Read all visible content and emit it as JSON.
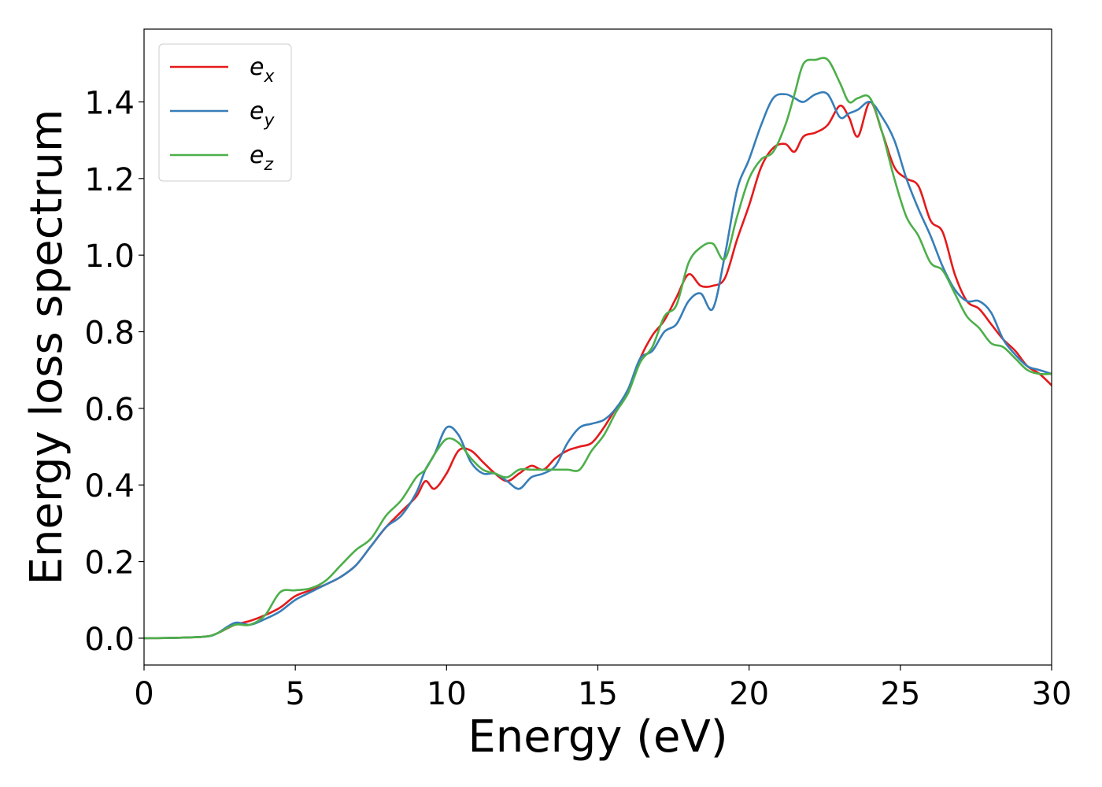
{
  "chart_data": {
    "type": "line",
    "title": "",
    "xlabel": "Energy (eV)",
    "ylabel": "Energy loss spectrum",
    "xlim": [
      0,
      30
    ],
    "ylim": [
      -0.07,
      1.59
    ],
    "xticks": [
      0,
      5,
      10,
      15,
      20,
      25,
      30
    ],
    "xtick_labels": [
      "0",
      "5",
      "10",
      "15",
      "20",
      "25",
      "30"
    ],
    "yticks": [
      0.0,
      0.2,
      0.4,
      0.6,
      0.8,
      1.0,
      1.2,
      1.4
    ],
    "ytick_labels": [
      "0.0",
      "0.2",
      "0.4",
      "0.6",
      "0.8",
      "1.0",
      "1.2",
      "1.4"
    ],
    "grid": false,
    "legend_position": "top-left",
    "series": [
      {
        "name": "e_x",
        "legend_base": "e",
        "legend_sub": "x",
        "color": "#e41a1c",
        "x": [
          0,
          1,
          2,
          2.4,
          3,
          3.5,
          4,
          4.5,
          5,
          5.5,
          6,
          6.5,
          7,
          7.5,
          8,
          8.5,
          9,
          9.3,
          9.6,
          10,
          10.4,
          10.8,
          11.2,
          11.6,
          12,
          12.4,
          12.8,
          13.2,
          13.6,
          14,
          14.4,
          14.8,
          15.2,
          15.6,
          16,
          16.4,
          16.8,
          17.2,
          17.6,
          18,
          18.4,
          18.8,
          19.2,
          19.6,
          20,
          20.4,
          20.8,
          21.2,
          21.5,
          21.8,
          22.2,
          22.6,
          23,
          23.3,
          23.6,
          24,
          24.4,
          24.8,
          25.2,
          25.6,
          26,
          26.4,
          26.8,
          27.2,
          27.6,
          28,
          28.4,
          28.8,
          29.2,
          29.6,
          30
        ],
        "y": [
          0.0,
          0.001,
          0.004,
          0.012,
          0.035,
          0.045,
          0.06,
          0.08,
          0.11,
          0.125,
          0.14,
          0.16,
          0.19,
          0.24,
          0.29,
          0.33,
          0.37,
          0.41,
          0.39,
          0.43,
          0.49,
          0.49,
          0.46,
          0.43,
          0.41,
          0.43,
          0.45,
          0.44,
          0.47,
          0.49,
          0.5,
          0.51,
          0.55,
          0.6,
          0.64,
          0.73,
          0.79,
          0.83,
          0.89,
          0.95,
          0.92,
          0.92,
          0.94,
          1.04,
          1.13,
          1.23,
          1.28,
          1.29,
          1.27,
          1.31,
          1.32,
          1.34,
          1.39,
          1.36,
          1.31,
          1.4,
          1.32,
          1.23,
          1.2,
          1.18,
          1.09,
          1.06,
          0.95,
          0.88,
          0.86,
          0.82,
          0.78,
          0.75,
          0.71,
          0.69,
          0.66
        ]
      },
      {
        "name": "e_y",
        "legend_base": "e",
        "legend_sub": "y",
        "color": "#377eb8",
        "x": [
          0,
          1,
          2,
          2.4,
          3,
          3.5,
          4,
          4.5,
          5,
          5.5,
          6,
          6.5,
          7,
          7.5,
          8,
          8.5,
          9,
          9.3,
          9.6,
          10,
          10.4,
          10.8,
          11.2,
          11.6,
          12,
          12.4,
          12.8,
          13.2,
          13.6,
          14,
          14.4,
          14.8,
          15.2,
          15.6,
          16,
          16.4,
          16.8,
          17.2,
          17.6,
          18,
          18.4,
          18.8,
          19.2,
          19.6,
          20,
          20.4,
          20.8,
          21.2,
          21.5,
          21.8,
          22.2,
          22.6,
          23,
          23.3,
          23.6,
          24,
          24.4,
          24.8,
          25.2,
          25.6,
          26,
          26.4,
          26.8,
          27.2,
          27.6,
          28,
          28.4,
          28.8,
          29.2,
          29.6,
          30
        ],
        "y": [
          0.0,
          0.001,
          0.004,
          0.012,
          0.04,
          0.035,
          0.05,
          0.07,
          0.1,
          0.12,
          0.14,
          0.16,
          0.19,
          0.24,
          0.29,
          0.32,
          0.38,
          0.44,
          0.48,
          0.55,
          0.53,
          0.46,
          0.43,
          0.43,
          0.41,
          0.39,
          0.42,
          0.43,
          0.45,
          0.51,
          0.55,
          0.56,
          0.57,
          0.6,
          0.65,
          0.73,
          0.75,
          0.8,
          0.82,
          0.88,
          0.9,
          0.86,
          1.0,
          1.17,
          1.25,
          1.34,
          1.41,
          1.42,
          1.41,
          1.4,
          1.42,
          1.42,
          1.36,
          1.37,
          1.38,
          1.4,
          1.36,
          1.3,
          1.2,
          1.12,
          1.05,
          0.97,
          0.91,
          0.88,
          0.88,
          0.85,
          0.78,
          0.74,
          0.71,
          0.7,
          0.69
        ]
      },
      {
        "name": "e_z",
        "legend_base": "e",
        "legend_sub": "z",
        "color": "#4daf4a",
        "x": [
          0,
          1,
          2,
          2.4,
          3,
          3.5,
          4,
          4.5,
          5,
          5.5,
          6,
          6.5,
          7,
          7.5,
          8,
          8.5,
          9,
          9.3,
          9.6,
          10,
          10.4,
          10.8,
          11.2,
          11.6,
          12,
          12.4,
          12.8,
          13.2,
          13.6,
          14,
          14.4,
          14.8,
          15.2,
          15.6,
          16,
          16.4,
          16.8,
          17.2,
          17.6,
          18,
          18.4,
          18.8,
          19.2,
          19.6,
          20,
          20.4,
          20.8,
          21.2,
          21.5,
          21.8,
          22.2,
          22.6,
          23,
          23.3,
          23.6,
          24,
          24.4,
          24.8,
          25.2,
          25.6,
          26,
          26.4,
          26.8,
          27.2,
          27.6,
          28,
          28.4,
          28.8,
          29.2,
          29.6,
          30
        ],
        "y": [
          0.0,
          0.001,
          0.004,
          0.012,
          0.035,
          0.035,
          0.06,
          0.12,
          0.125,
          0.13,
          0.15,
          0.19,
          0.23,
          0.26,
          0.32,
          0.36,
          0.42,
          0.44,
          0.48,
          0.52,
          0.51,
          0.47,
          0.44,
          0.43,
          0.42,
          0.44,
          0.44,
          0.44,
          0.44,
          0.44,
          0.44,
          0.49,
          0.53,
          0.59,
          0.64,
          0.72,
          0.76,
          0.84,
          0.87,
          0.98,
          1.02,
          1.03,
          0.99,
          1.1,
          1.2,
          1.25,
          1.27,
          1.34,
          1.42,
          1.5,
          1.51,
          1.51,
          1.45,
          1.4,
          1.41,
          1.41,
          1.32,
          1.2,
          1.1,
          1.05,
          0.98,
          0.96,
          0.9,
          0.84,
          0.81,
          0.77,
          0.76,
          0.73,
          0.7,
          0.69,
          0.69
        ]
      }
    ]
  }
}
